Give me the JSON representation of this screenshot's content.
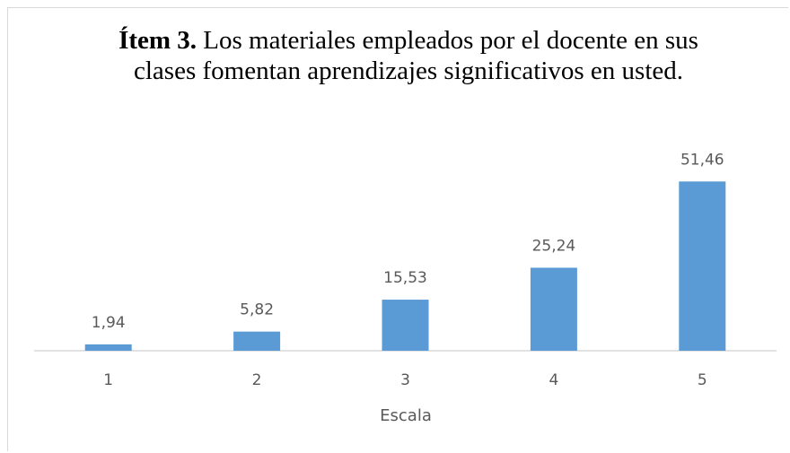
{
  "chart_data": {
    "type": "bar",
    "title_bold": "Ítem 3.",
    "title": "Los materiales empleados por el docente en sus clases fomentan aprendizajes significativos en usted.",
    "xlabel": "Escala",
    "categories": [
      "1",
      "2",
      "3",
      "4",
      "5"
    ],
    "values": [
      1.94,
      5.82,
      15.53,
      25.24,
      51.46
    ],
    "value_labels": [
      "1,94",
      "5,82",
      "15,53",
      "25,24",
      "51,46"
    ],
    "color": "#5b9bd5",
    "ylim": [
      0,
      60
    ]
  }
}
